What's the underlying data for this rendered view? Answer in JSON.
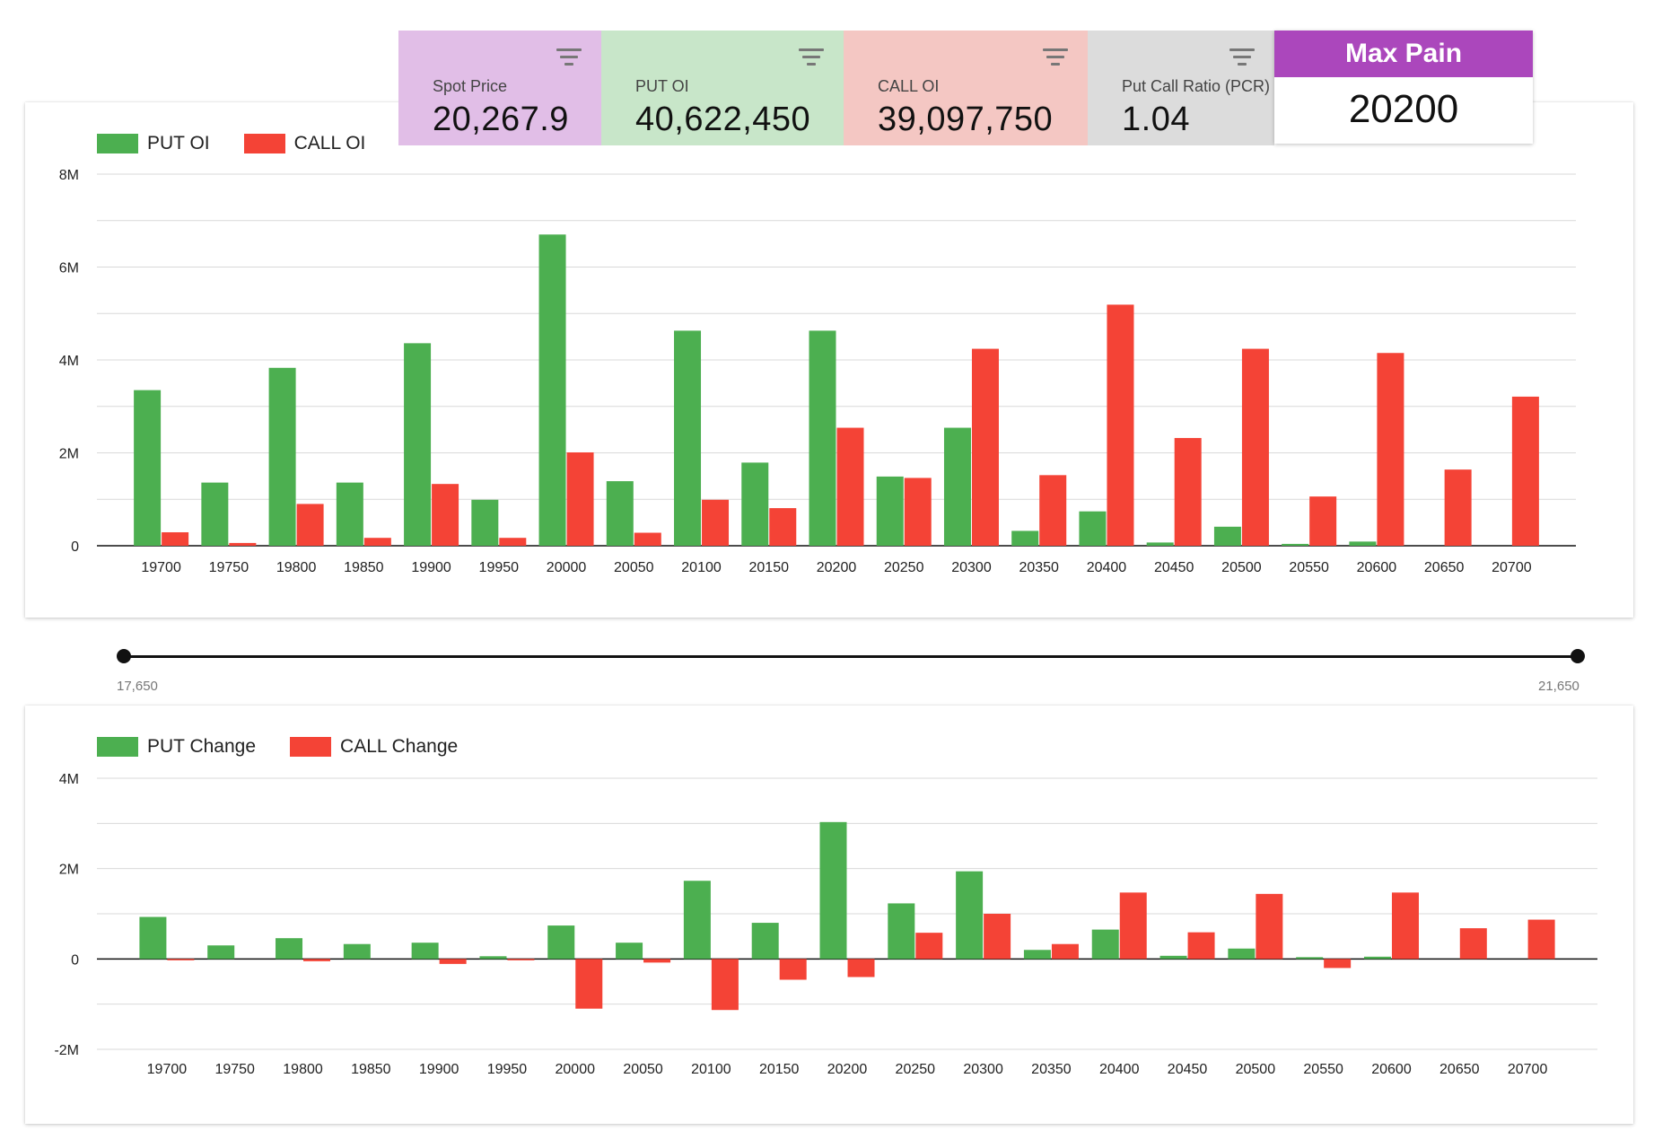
{
  "summary": {
    "spot": {
      "label": "Spot Price",
      "value": "20,267.9",
      "icon": "filter-icon"
    },
    "put_oi": {
      "label": "PUT OI",
      "value": "40,622,450",
      "icon": "filter-icon"
    },
    "call_oi": {
      "label": "CALL OI",
      "value": "39,097,750",
      "icon": "filter-icon"
    },
    "pcr": {
      "label": "Put Call Ratio (PCR)",
      "value": "1.04",
      "icon": "filter-icon"
    },
    "max_pain": {
      "label": "Max Pain",
      "value": "20200"
    }
  },
  "colors": {
    "put": "#4caf50",
    "call": "#f44336",
    "max_pain": "#ab47bc"
  },
  "range": {
    "min_label": "17,650",
    "max_label": "21,650"
  },
  "chart_data": [
    {
      "type": "bar",
      "categories": [
        "19700",
        "19750",
        "19800",
        "19850",
        "19900",
        "19950",
        "20000",
        "20050",
        "20100",
        "20150",
        "20200",
        "20250",
        "20300",
        "20350",
        "20400",
        "20450",
        "20500",
        "20550",
        "20600",
        "20650",
        "20700"
      ],
      "series": [
        {
          "name": "PUT OI",
          "values": [
            3350000,
            1360000,
            3830000,
            1360000,
            4360000,
            990000,
            6700000,
            1390000,
            4630000,
            1790000,
            4630000,
            1490000,
            2540000,
            320000,
            740000,
            70000,
            410000,
            40000,
            90000,
            0,
            0
          ]
        },
        {
          "name": "CALL OI",
          "values": [
            290000,
            60000,
            900000,
            170000,
            1330000,
            170000,
            2010000,
            280000,
            990000,
            810000,
            2540000,
            1460000,
            4240000,
            1520000,
            5190000,
            2320000,
            4240000,
            1060000,
            4150000,
            1640000,
            3210000
          ]
        }
      ],
      "ylim": [
        0,
        8000000
      ],
      "yticks": [
        0,
        2000000,
        4000000,
        6000000,
        8000000
      ],
      "ytick_labels": [
        "0",
        "2M",
        "4M",
        "6M",
        "8M"
      ],
      "grid": true,
      "legend": "top-left"
    },
    {
      "type": "bar",
      "categories": [
        "19700",
        "19750",
        "19800",
        "19850",
        "19900",
        "19950",
        "20000",
        "20050",
        "20100",
        "20150",
        "20200",
        "20250",
        "20300",
        "20350",
        "20400",
        "20450",
        "20500",
        "20550",
        "20600",
        "20650",
        "20700"
      ],
      "series": [
        {
          "name": "PUT Change",
          "values": [
            930000,
            300000,
            460000,
            330000,
            360000,
            60000,
            740000,
            360000,
            1730000,
            800000,
            3030000,
            1230000,
            1940000,
            200000,
            650000,
            70000,
            230000,
            40000,
            50000,
            0,
            0
          ]
        },
        {
          "name": "CALL Change",
          "values": [
            -20000,
            0,
            -50000,
            0,
            -110000,
            -30000,
            -1100000,
            -80000,
            -1130000,
            -460000,
            -400000,
            580000,
            1000000,
            330000,
            1470000,
            590000,
            1440000,
            -200000,
            1470000,
            680000,
            870000
          ]
        }
      ],
      "ylim": [
        -2000000,
        4000000
      ],
      "yticks": [
        -2000000,
        0,
        2000000,
        4000000
      ],
      "ytick_labels": [
        "-2M",
        "0",
        "2M",
        "4M"
      ],
      "grid": true,
      "legend": "top-left"
    }
  ]
}
